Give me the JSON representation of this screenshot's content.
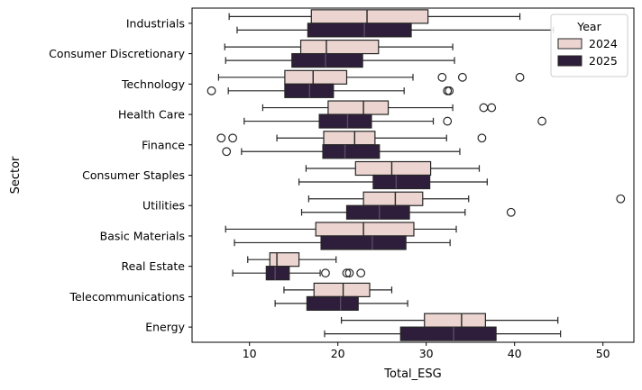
{
  "chart_data": {
    "type": "boxplot",
    "orientation": "horizontal",
    "title": "",
    "xlabel": "Total_ESG",
    "ylabel": "Sector",
    "xlim": [
      3.5,
      53.5
    ],
    "xticks": [
      10,
      20,
      30,
      40,
      50
    ],
    "categories": [
      "Industrials",
      "Consumer Discretionary",
      "Technology",
      "Health Care",
      "Finance",
      "Consumer Staples",
      "Utilities",
      "Basic Materials",
      "Real Estate",
      "Telecommunications",
      "Energy"
    ],
    "legend": {
      "title": "Year",
      "placement": "top-right"
    },
    "series": [
      {
        "name": "2024",
        "color": "#ecd5d0",
        "boxes": [
          {
            "whislo": 7.7,
            "q1": 17.0,
            "med": 23.3,
            "q3": 30.2,
            "whishi": 40.6,
            "fliers": []
          },
          {
            "whislo": 7.2,
            "q1": 15.8,
            "med": 18.7,
            "q3": 24.6,
            "whishi": 33.0,
            "fliers": []
          },
          {
            "whislo": 6.5,
            "q1": 14.0,
            "med": 17.2,
            "q3": 21.0,
            "whishi": 28.5,
            "fliers": [
              31.8,
              34.1,
              40.6
            ]
          },
          {
            "whislo": 11.5,
            "q1": 18.9,
            "med": 22.9,
            "q3": 25.7,
            "whishi": 33.0,
            "fliers": [
              36.5,
              37.4
            ]
          },
          {
            "whislo": 13.1,
            "q1": 18.4,
            "med": 21.9,
            "q3": 24.2,
            "whishi": 32.3,
            "fliers": [
              6.8,
              8.1,
              36.3
            ]
          },
          {
            "whislo": 16.4,
            "q1": 22.0,
            "med": 26.1,
            "q3": 30.5,
            "whishi": 36.0,
            "fliers": []
          },
          {
            "whislo": 16.7,
            "q1": 22.9,
            "med": 26.5,
            "q3": 29.6,
            "whishi": 34.8,
            "fliers": [
              52.0
            ]
          },
          {
            "whislo": 7.3,
            "q1": 17.5,
            "med": 22.9,
            "q3": 28.6,
            "whishi": 33.4,
            "fliers": []
          },
          {
            "whislo": 9.8,
            "q1": 12.3,
            "med": 13.1,
            "q3": 15.6,
            "whishi": 19.8,
            "fliers": []
          },
          {
            "whislo": 13.9,
            "q1": 17.3,
            "med": 20.6,
            "q3": 23.6,
            "whishi": 26.1,
            "fliers": []
          },
          {
            "whislo": 20.4,
            "q1": 29.8,
            "med": 34.0,
            "q3": 36.7,
            "whishi": 44.9,
            "fliers": []
          }
        ]
      },
      {
        "name": "2025",
        "color": "#2e1e3b",
        "boxes": [
          {
            "whislo": 8.6,
            "q1": 16.6,
            "med": 23.0,
            "q3": 28.3,
            "whishi": 44.4,
            "fliers": []
          },
          {
            "whislo": 7.3,
            "q1": 14.8,
            "med": 18.6,
            "q3": 22.8,
            "whishi": 33.2,
            "fliers": []
          },
          {
            "whislo": 7.6,
            "q1": 14.0,
            "med": 16.8,
            "q3": 19.5,
            "whishi": 27.5,
            "fliers": [
              5.7,
              32.4,
              32.6
            ]
          },
          {
            "whislo": 9.4,
            "q1": 17.9,
            "med": 21.1,
            "q3": 23.8,
            "whishi": 30.8,
            "fliers": [
              32.4,
              43.1
            ]
          },
          {
            "whislo": 9.1,
            "q1": 18.3,
            "med": 20.8,
            "q3": 24.7,
            "whishi": 33.8,
            "fliers": [
              7.4
            ]
          },
          {
            "whislo": 15.6,
            "q1": 24.0,
            "med": 26.6,
            "q3": 30.4,
            "whishi": 36.9,
            "fliers": []
          },
          {
            "whislo": 15.9,
            "q1": 21.0,
            "med": 24.7,
            "q3": 28.1,
            "whishi": 34.4,
            "fliers": [
              39.6
            ]
          },
          {
            "whislo": 8.3,
            "q1": 18.1,
            "med": 23.9,
            "q3": 27.7,
            "whishi": 32.7,
            "fliers": []
          },
          {
            "whislo": 8.1,
            "q1": 11.9,
            "med": 12.9,
            "q3": 14.5,
            "whishi": 18.0,
            "fliers": [
              18.6,
              21.0,
              21.3,
              22.6
            ]
          },
          {
            "whislo": 12.9,
            "q1": 16.5,
            "med": 20.3,
            "q3": 22.3,
            "whishi": 27.9,
            "fliers": []
          },
          {
            "whislo": 18.5,
            "q1": 27.1,
            "med": 33.1,
            "q3": 37.9,
            "whishi": 45.2,
            "fliers": []
          }
        ]
      }
    ]
  }
}
